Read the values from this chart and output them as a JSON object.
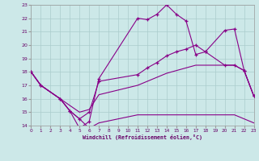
{
  "background_color": "#cce8e8",
  "grid_color": "#aacccc",
  "line_color": "#880088",
  "xlim": [
    0,
    23
  ],
  "ylim": [
    14,
    23
  ],
  "xticks": [
    0,
    1,
    2,
    3,
    4,
    5,
    6,
    7,
    8,
    9,
    10,
    11,
    12,
    13,
    14,
    15,
    16,
    17,
    18,
    19,
    20,
    21,
    22,
    23
  ],
  "yticks": [
    14,
    15,
    16,
    17,
    18,
    19,
    20,
    21,
    22,
    23
  ],
  "xlabel": "Windchill (Refroidissement éolien,°C)",
  "series": [
    {
      "x": [
        0,
        1,
        3,
        4,
        5,
        6,
        7,
        11,
        12,
        13,
        14,
        15,
        16,
        17,
        18,
        20,
        21,
        22,
        23
      ],
      "y": [
        18,
        17,
        16,
        15.1,
        13.8,
        14.3,
        17.5,
        22.0,
        21.9,
        22.3,
        23.0,
        22.3,
        21.8,
        19.3,
        19.5,
        21.1,
        21.2,
        18.1,
        16.2
      ],
      "marker": true
    },
    {
      "x": [
        0,
        1,
        3,
        4,
        5,
        6,
        7,
        11,
        12,
        13,
        14,
        15,
        16,
        17,
        18,
        20,
        21,
        22,
        23
      ],
      "y": [
        18,
        17,
        16,
        15.1,
        14.5,
        15.0,
        17.3,
        17.8,
        18.3,
        18.7,
        19.2,
        19.5,
        19.7,
        20.0,
        19.5,
        18.5,
        18.5,
        18.1,
        16.2
      ],
      "marker": true
    },
    {
      "x": [
        0,
        1,
        3,
        4,
        5,
        6,
        7,
        11,
        12,
        13,
        14,
        15,
        16,
        17,
        18,
        20,
        21,
        22,
        23
      ],
      "y": [
        18,
        17,
        16,
        15.5,
        15.0,
        15.2,
        16.3,
        17.0,
        17.3,
        17.6,
        17.9,
        18.1,
        18.3,
        18.5,
        18.5,
        18.5,
        18.5,
        18.1,
        16.2
      ],
      "marker": false
    },
    {
      "x": [
        0,
        1,
        3,
        4,
        5,
        6,
        7,
        11,
        12,
        13,
        14,
        15,
        16,
        17,
        18,
        20,
        21,
        22,
        23
      ],
      "y": [
        18,
        17,
        16,
        15.1,
        14.5,
        13.8,
        14.2,
        14.8,
        14.8,
        14.8,
        14.8,
        14.8,
        14.8,
        14.8,
        14.8,
        14.8,
        14.8,
        14.5,
        14.2
      ],
      "marker": false
    }
  ]
}
